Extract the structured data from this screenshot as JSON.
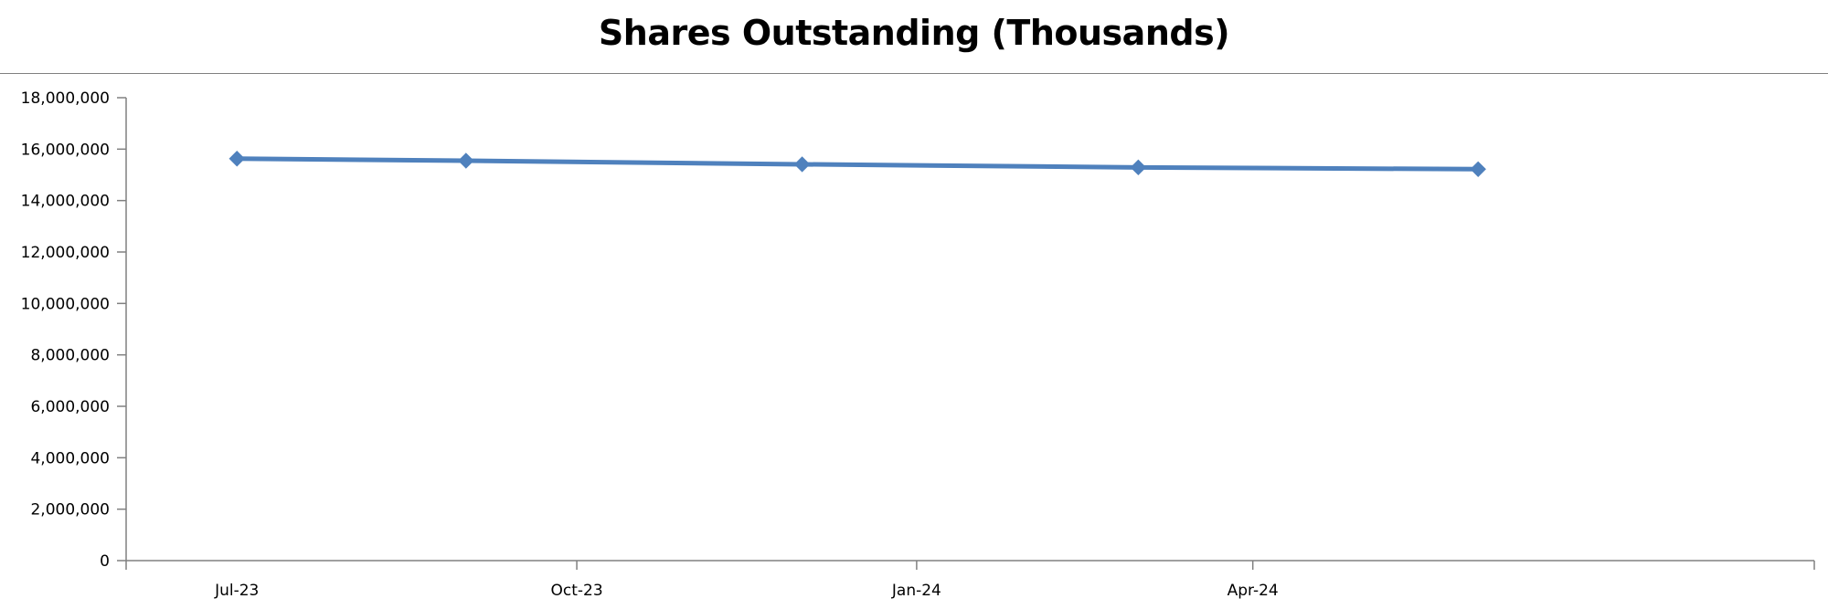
{
  "chart_data": {
    "type": "line",
    "title": "Shares Outstanding (Thousands)",
    "xlabel": "",
    "ylabel": "",
    "x_axis": {
      "type": "date",
      "range": [
        "2023-06-01",
        "2024-08-31"
      ],
      "tick_dates": [
        "2023-07-01",
        "2023-10-01",
        "2024-01-01",
        "2024-04-01"
      ],
      "tick_labels": [
        "Jul-23",
        "Oct-23",
        "Jan-24",
        "Apr-24"
      ]
    },
    "y_axis": {
      "min": 0,
      "max": 18000000,
      "step": 2000000,
      "tick_labels": [
        "0",
        "2,000,000",
        "4,000,000",
        "6,000,000",
        "8,000,000",
        "10,000,000",
        "12,000,000",
        "14,000,000",
        "16,000,000",
        "18,000,000"
      ]
    },
    "grid": false,
    "legend": "none",
    "series": [
      {
        "color": "#4F81BD",
        "marker": "diamond",
        "points": [
          {
            "x": "2023-07-01",
            "y": 15630000
          },
          {
            "x": "2023-09-01",
            "y": 15550000
          },
          {
            "x": "2023-12-01",
            "y": 15410000
          },
          {
            "x": "2024-03-01",
            "y": 15290000
          },
          {
            "x": "2024-06-01",
            "y": 15220000
          }
        ]
      }
    ]
  }
}
